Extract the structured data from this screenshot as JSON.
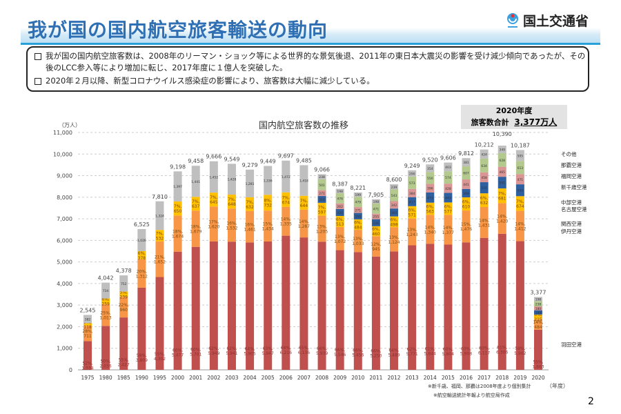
{
  "header": {
    "title": "我が国の国内航空旅客輸送の動向",
    "logo_text": "国土交通省"
  },
  "summary": {
    "bullets": [
      "我が国の国内航空旅客数は、2008年のリーマン・ショック等による世界的な景気後退、2011年の東日本大震災の影響を受け減少傾向であったが、その後のLCC参入等により増加に転じ、2017年度に１億人を突破した。",
      "2020年２月以降、新型コロナウイルス感染症の影響により、旅客数は大幅に減少している。"
    ]
  },
  "badge": {
    "line1": "2020年度",
    "line2_prefix": "旅客数合計",
    "line2_value": "3,377万人"
  },
  "page_number": "2",
  "chart_data": {
    "type": "bar",
    "stacked": true,
    "title": "国内航空旅客数の推移",
    "ylabel": "（万人）",
    "xlabel": "（年度）",
    "ylim": [
      0,
      11000
    ],
    "yticks": [
      0,
      1000,
      2000,
      3000,
      4000,
      5000,
      6000,
      7000,
      8000,
      9000,
      10000,
      11000
    ],
    "grid": true,
    "categories": [
      "1975",
      "1980",
      "1985",
      "1990",
      "1995",
      "2000",
      "2001",
      "2002",
      "2003",
      "2004",
      "2005",
      "2006",
      "2007",
      "2008",
      "2009",
      "2010",
      "2011",
      "2012",
      "2013",
      "2014",
      "2015",
      "2016",
      "2017",
      "2018",
      "2019",
      "2020"
    ],
    "totals": [
      2545,
      4042,
      4378,
      6525,
      7810,
      9198,
      9458,
      9666,
      9549,
      9279,
      9449,
      9697,
      9485,
      9066,
      8387,
      8221,
      7905,
      8600,
      9249,
      9520,
      9606,
      9812,
      10212,
      10390,
      10187,
      3377
    ],
    "series": [
      {
        "name": "羽田空港",
        "color": "#c0504d",
        "values": [
          1334,
          2036,
          2427,
          3809,
          4302,
          5477,
          5701,
          5949,
          5941,
          5905,
          5947,
          6216,
          6136,
          5939,
          5546,
          5456,
          5250,
          5489,
          5771,
          5844,
          5804,
          5908,
          6117,
          6306,
          5962,
          1863
        ]
      },
      {
        "name": "関西空港 伊丹空港",
        "color": "#f79646",
        "values": [
          711,
          1013,
          960,
          1312,
          1652,
          1674,
          1679,
          1620,
          1532,
          1461,
          1434,
          1335,
          1287,
          1205,
          1072,
          1033,
          945,
          1124,
          1243,
          1340,
          1377,
          1476,
          1431,
          1420,
          1412,
          484
        ]
      },
      {
        "name": "中部空港 名古屋空港",
        "color": "#ffc000",
        "values": [
          118,
          259,
          239,
          378,
          532,
          650,
          637,
          645,
          648,
          632,
          732,
          674,
          644,
          597,
          513,
          484,
          460,
          498,
          571,
          563,
          577,
          610,
          632,
          681,
          674,
          215
        ]
      },
      {
        "name": "新千歳空港",
        "color": "#2e5f9e",
        "values": [
          0,
          0,
          0,
          0,
          0,
          0,
          0,
          0,
          0,
          0,
          0,
          0,
          0,
          315,
          320,
          299,
          326,
          365,
          417,
          473,
          443,
          389,
          516,
          541,
          550,
          199
        ]
      },
      {
        "name": "福岡空港",
        "color": "#d99694",
        "values": [
          0,
          0,
          0,
          0,
          0,
          0,
          0,
          0,
          0,
          0,
          0,
          0,
          0,
          271,
          262,
          271,
          255,
          342,
          384,
          396,
          428,
          441,
          458,
          465,
          471,
          180
        ]
      },
      {
        "name": "那覇空港",
        "color": "#b3c98d",
        "values": [
          0,
          0,
          0,
          0,
          0,
          0,
          0,
          0,
          0,
          0,
          0,
          0,
          0,
          501,
          476,
          479,
          471,
          543,
          573,
          550,
          574,
          607,
          634,
          628,
          613,
          238
        ]
      },
      {
        "name": "その他",
        "color": "#bfbfbf",
        "values": [
          382,
          734,
          752,
          1026,
          1324,
          1397,
          1441,
          1452,
          1428,
          1281,
          1336,
          1472,
          1418,
          238,
          198,
          199,
          198,
          239,
          290,
          354,
          403,
          381,
          424,
          349,
          505,
          198
        ]
      }
    ],
    "legend_labels": [
      "その他",
      "那覇空港",
      "福岡空港",
      "新千歳空港",
      "中部空港",
      "名古屋空港",
      "関西空港",
      "伊丹空港",
      "羽田空港"
    ],
    "notes": [
      "※新千歳、福岡、那覇は2008年度より個別集計",
      "※航空輸送統計年報より航空局作成"
    ]
  }
}
